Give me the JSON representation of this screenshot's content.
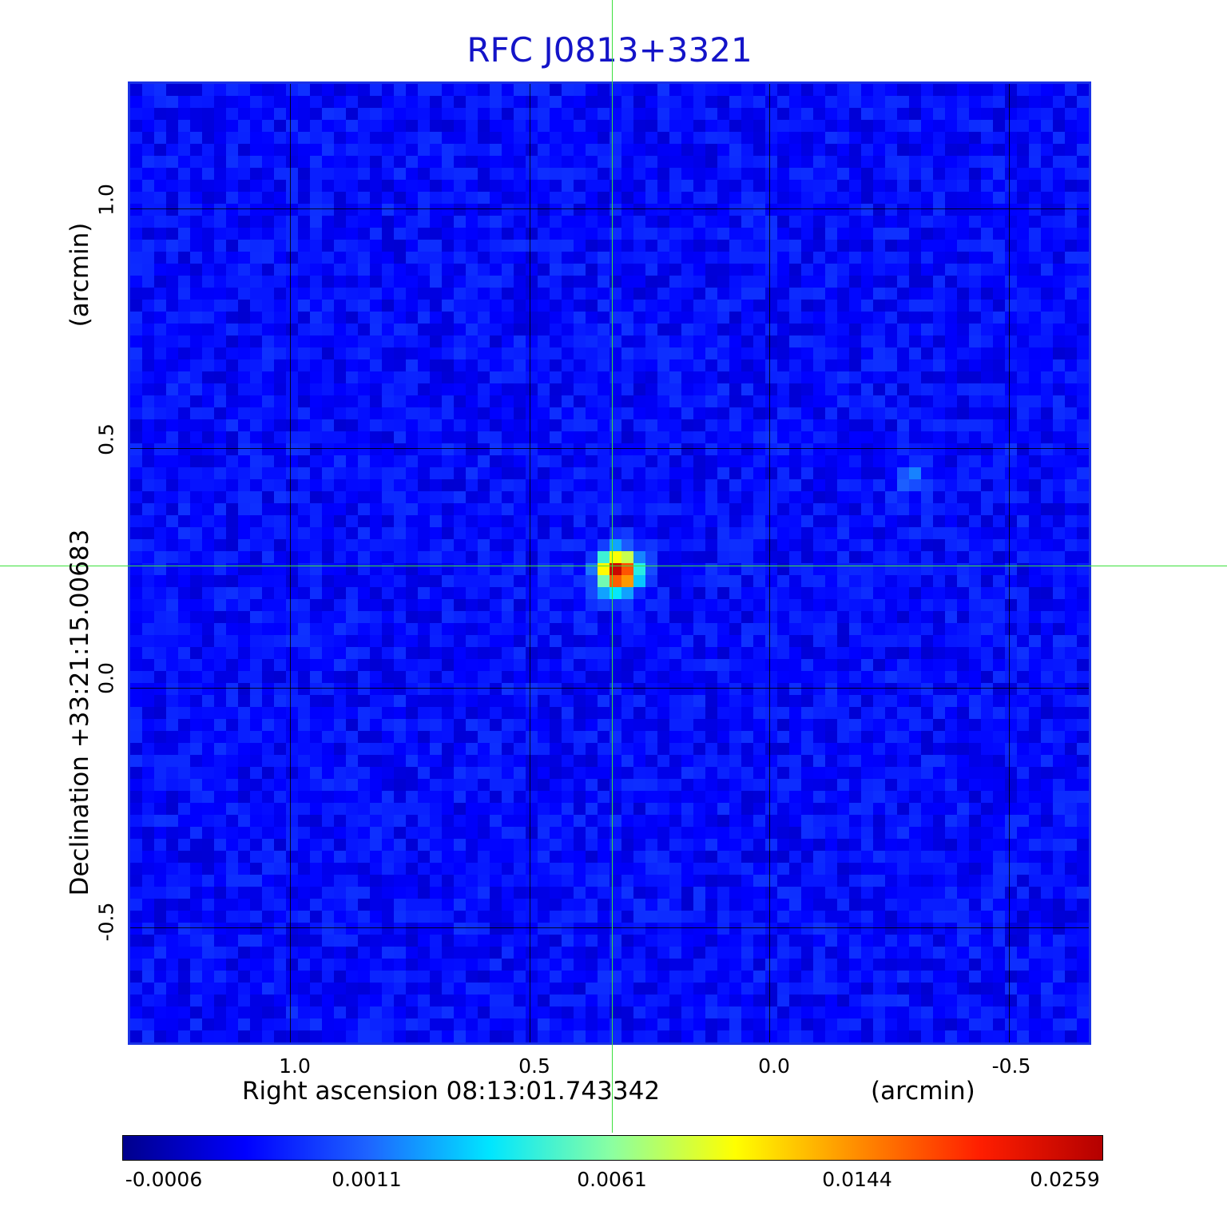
{
  "title": "RFC J0813+3321",
  "x_axis": {
    "label": "Right ascension  08:13:01.743342",
    "unit": "(arcmin)",
    "ticks": [
      "1.0",
      "0.5",
      "0.0",
      "-0.5"
    ]
  },
  "y_axis": {
    "label": "Declination  +33:21:15.00683",
    "unit": "(arcmin)",
    "ticks": [
      "1.0",
      "0.5",
      "0.0",
      "-0.5"
    ]
  },
  "colorbar": {
    "ticks": [
      "-0.0006",
      "0.0011",
      "0.0061",
      "0.0144",
      "0.0259"
    ],
    "colors": [
      "#00008c",
      "#0000ff",
      "#1e64ff",
      "#00e6ff",
      "#8cffa0",
      "#ffff00",
      "#ff8c00",
      "#ff1e00",
      "#b40000"
    ]
  },
  "colors": {
    "title": "#1414c8",
    "background_map": "#2a55f0",
    "crosshair": "#3ce03c",
    "frame": "#1a32e6"
  }
}
